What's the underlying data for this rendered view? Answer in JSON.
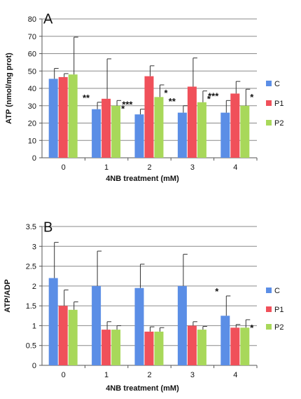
{
  "chart_data": [
    {
      "type": "bar",
      "panel_label": "A",
      "xlabel": "4NB  treatment (mM)",
      "ylabel": "ATP (nmol/mg prot)",
      "ylim": [
        0,
        80
      ],
      "yticks": [
        "0",
        "10",
        "20",
        "30",
        "40",
        "50",
        "60",
        "70",
        "80"
      ],
      "grid": true,
      "legend_position": "right",
      "categories": [
        "0",
        "1",
        "2",
        "3",
        "4"
      ],
      "series": [
        {
          "name": "C",
          "color": "#5b8ee6",
          "values": [
            45.5,
            28,
            25,
            26,
            26
          ],
          "errors": [
            6,
            4,
            3,
            4,
            7
          ]
        },
        {
          "name": "P1",
          "color": "#f0505a",
          "values": [
            46.5,
            34,
            47,
            41,
            37
          ],
          "errors": [
            2,
            23,
            6,
            16.5,
            7
          ]
        },
        {
          "name": "P2",
          "color": "#a8d85a",
          "values": [
            48,
            30,
            35,
            32,
            30
          ],
          "errors": [
            21.5,
            3,
            7,
            6.5,
            9.5
          ]
        }
      ],
      "annotations": [
        {
          "category": "1",
          "series": "C",
          "text": "**"
        },
        {
          "category": "1",
          "series": "P2",
          "text": "*"
        },
        {
          "category": "2",
          "series": "C",
          "text": "***"
        },
        {
          "category": "2",
          "series": "P2",
          "text": "*"
        },
        {
          "category": "3",
          "series": "C",
          "text": "**"
        },
        {
          "category": "3",
          "series": "P2",
          "text": "*"
        },
        {
          "category": "4",
          "series": "C",
          "text": "***"
        },
        {
          "category": "4",
          "series": "P2",
          "text": "*"
        }
      ]
    },
    {
      "type": "bar",
      "panel_label": "B",
      "xlabel": "4NB treatment (mM)",
      "ylabel": "ATP/ADP",
      "ylim": [
        0,
        3.5
      ],
      "yticks": [
        "0",
        "0.5",
        "1",
        "1.5",
        "2",
        "2.5",
        "3",
        "3.5"
      ],
      "grid": true,
      "legend_position": "right",
      "categories": [
        "0",
        "1",
        "2",
        "3",
        "4"
      ],
      "series": [
        {
          "name": "C",
          "color": "#5b8ee6",
          "values": [
            2.2,
            2.0,
            1.95,
            2.0,
            1.25
          ],
          "errors": [
            0.9,
            0.88,
            0.6,
            0.8,
            0.5
          ]
        },
        {
          "name": "P1",
          "color": "#f0505a",
          "values": [
            1.5,
            0.9,
            0.85,
            1.0,
            0.95
          ],
          "errors": [
            0.4,
            0.2,
            0.12,
            0.1,
            0.08
          ]
        },
        {
          "name": "P2",
          "color": "#a8d85a",
          "values": [
            1.4,
            0.9,
            0.85,
            0.9,
            0.95
          ],
          "errors": [
            0.2,
            0.1,
            0.1,
            0.08,
            0.2
          ]
        }
      ],
      "annotations": [
        {
          "category": "4",
          "series": "C",
          "text": "*"
        },
        {
          "category": "4",
          "series": "P2",
          "text": "*"
        }
      ]
    }
  ]
}
